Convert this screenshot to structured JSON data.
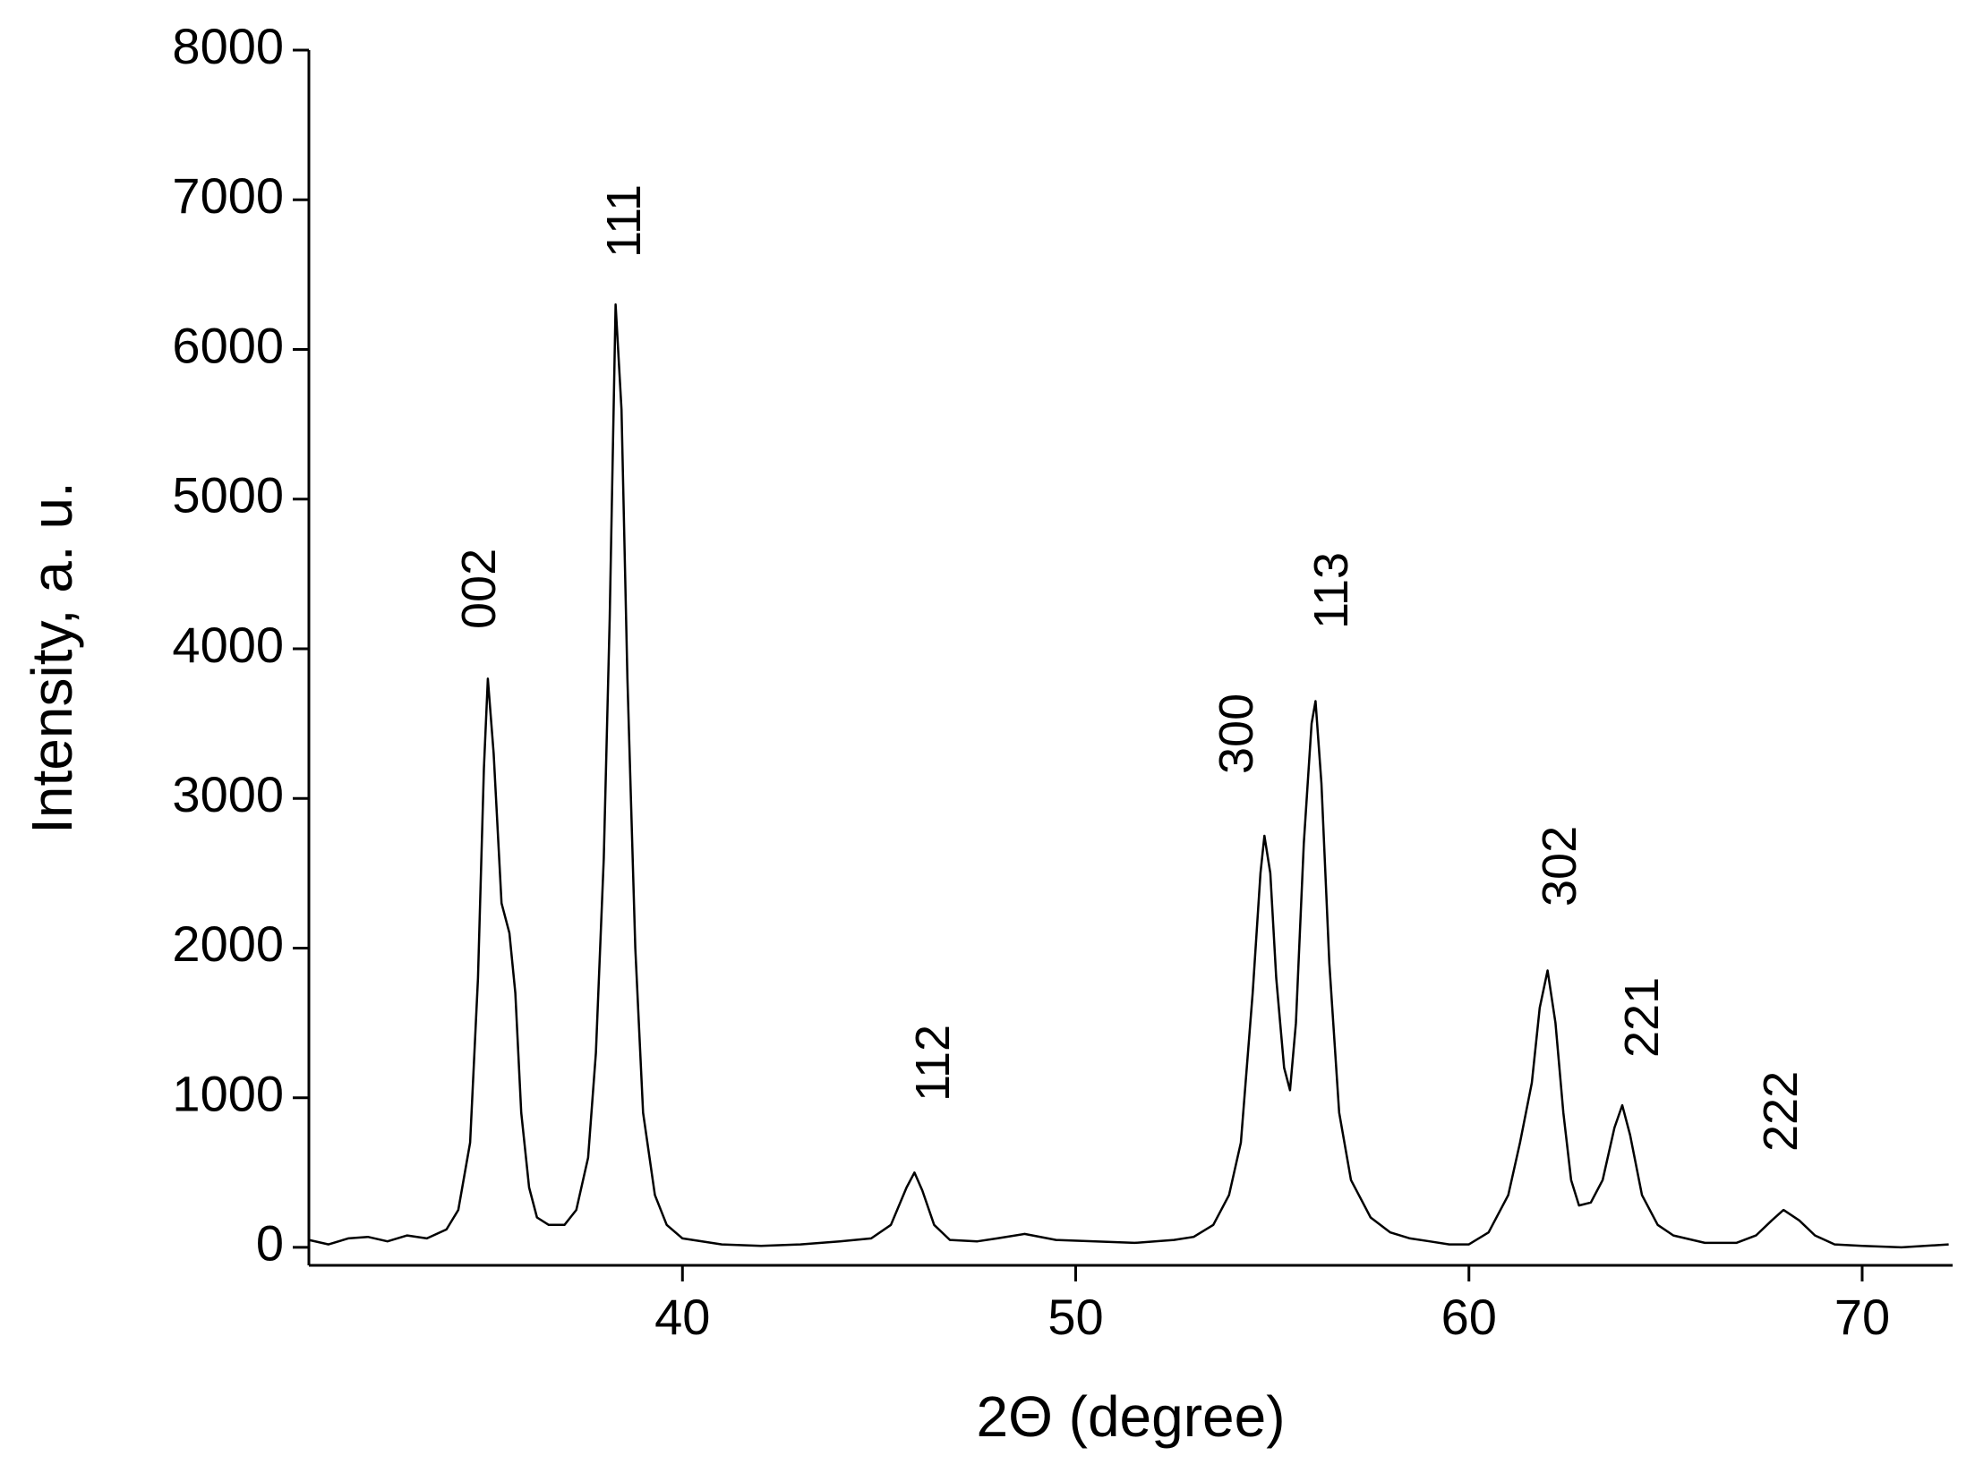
{
  "chart_data": {
    "type": "line",
    "xlabel": "2Θ (degree)",
    "ylabel": "Intensity, a. u.",
    "xlim": [
      30.5,
      72.3
    ],
    "ylim": [
      -120,
      8000
    ],
    "xticks": [
      40,
      50,
      60,
      70
    ],
    "yticks": [
      0,
      1000,
      2000,
      3000,
      4000,
      5000,
      6000,
      7000,
      8000
    ],
    "annotations": [
      "002",
      "111",
      "112",
      "300",
      "113",
      "302",
      "221",
      "222"
    ],
    "series": [
      {
        "color": "#000000",
        "x": [
          30.5,
          31,
          31.5,
          32,
          32.5,
          33,
          33.5,
          34,
          34.3,
          34.6,
          34.8,
          34.95,
          35.05,
          35.2,
          35.4,
          35.6,
          35.75,
          35.9,
          36.1,
          36.3,
          36.6,
          37.0,
          37.3,
          37.6,
          37.8,
          38.0,
          38.15,
          38.3,
          38.45,
          38.6,
          38.8,
          39.0,
          39.3,
          39.6,
          40,
          41,
          42,
          43,
          44,
          44.8,
          45.3,
          45.7,
          45.9,
          46.1,
          46.4,
          46.8,
          47.5,
          48,
          48.7,
          49.5,
          50.5,
          51.5,
          52.5,
          53,
          53.5,
          53.9,
          54.2,
          54.5,
          54.7,
          54.8,
          54.95,
          55.1,
          55.3,
          55.45,
          55.6,
          55.8,
          56.0,
          56.1,
          56.25,
          56.45,
          56.7,
          57,
          57.5,
          58,
          58.5,
          59,
          59.5,
          60,
          60.5,
          61,
          61.3,
          61.6,
          61.8,
          62.0,
          62.2,
          62.4,
          62.6,
          62.8,
          63.1,
          63.4,
          63.7,
          63.9,
          64.1,
          64.4,
          64.8,
          65.2,
          66,
          66.8,
          67.3,
          67.7,
          68.0,
          68.4,
          68.8,
          69.3,
          70,
          71,
          72.2
        ],
        "values": [
          50,
          20,
          60,
          70,
          40,
          80,
          60,
          120,
          250,
          700,
          1800,
          3200,
          3800,
          3300,
          2300,
          2100,
          1700,
          900,
          400,
          200,
          150,
          150,
          250,
          600,
          1300,
          2600,
          4200,
          6300,
          5600,
          3800,
          2000,
          900,
          350,
          150,
          60,
          20,
          10,
          20,
          40,
          60,
          150,
          400,
          500,
          380,
          150,
          50,
          40,
          60,
          90,
          50,
          40,
          30,
          50,
          70,
          150,
          350,
          700,
          1700,
          2500,
          2750,
          2500,
          1800,
          1200,
          1050,
          1500,
          2700,
          3500,
          3650,
          3100,
          1900,
          900,
          450,
          200,
          100,
          60,
          40,
          20,
          20,
          100,
          350,
          700,
          1100,
          1600,
          1850,
          1500,
          900,
          450,
          280,
          300,
          450,
          800,
          950,
          750,
          350,
          150,
          80,
          30,
          30,
          80,
          180,
          250,
          180,
          80,
          20,
          10,
          0,
          20
        ]
      }
    ]
  }
}
